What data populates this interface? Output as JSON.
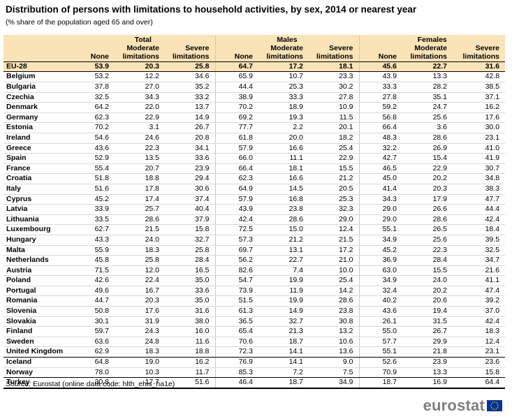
{
  "title": "Distribution of persons with limitations to household activities, by sex, 2014 or nearest year",
  "subtitle": "(% share of the population aged 65 and over)",
  "groups": [
    "Total",
    "Males",
    "Females"
  ],
  "columns": [
    "None",
    "Moderate",
    "limitations",
    "Severe",
    "limitations"
  ],
  "source_label": "Source:",
  "source_text": " Eurostat (online data code: hlth_ehis_ha1e)",
  "logo_text": "eurostat",
  "logo_icon": "eu-flag-icon",
  "colors": {
    "header_bg": "#fbe3b8",
    "flag_blue": "#003399",
    "flag_star": "#ffcc00",
    "logo_gray": "#7f7f7f"
  },
  "rows": [
    {
      "country": "EU-28",
      "v": [
        "53.9",
        "20.3",
        "25.8",
        "64.7",
        "17.2",
        "18.1",
        "45.6",
        "22.7",
        "31.6"
      ]
    },
    {
      "country": "Belgium",
      "v": [
        "53.2",
        "12.2",
        "34.6",
        "65.9",
        "10.7",
        "23.3",
        "43.9",
        "13.3",
        "42.8"
      ]
    },
    {
      "country": "Bulgaria",
      "v": [
        "37.8",
        "27.0",
        "35.2",
        "44.4",
        "25.3",
        "30.2",
        "33.3",
        "28.2",
        "38.5"
      ]
    },
    {
      "country": "Czechia",
      "v": [
        "32.5",
        "34.3",
        "33.2",
        "38.9",
        "33.3",
        "27.8",
        "27.8",
        "35.1",
        "37.1"
      ]
    },
    {
      "country": "Denmark",
      "v": [
        "64.2",
        "22.0",
        "13.7",
        "70.2",
        "18.9",
        "10.9",
        "59.2",
        "24.7",
        "16.2"
      ]
    },
    {
      "country": "Germany",
      "v": [
        "62.3",
        "22.9",
        "14.9",
        "69.2",
        "19.3",
        "11.5",
        "56.8",
        "25.6",
        "17.6"
      ]
    },
    {
      "country": "Estonia",
      "v": [
        "70.2",
        "3.1",
        "26.7",
        "77.7",
        "2.2",
        "20.1",
        "66.4",
        "3.6",
        "30.0"
      ]
    },
    {
      "country": "Ireland",
      "v": [
        "54.6",
        "24.6",
        "20.8",
        "61.8",
        "20.0",
        "18.2",
        "48.3",
        "28.6",
        "23.1"
      ]
    },
    {
      "country": "Greece",
      "v": [
        "43.6",
        "22.3",
        "34.1",
        "57.9",
        "16.6",
        "25.4",
        "32.2",
        "26.9",
        "41.0"
      ]
    },
    {
      "country": "Spain",
      "v": [
        "52.9",
        "13.5",
        "33.6",
        "66.0",
        "11.1",
        "22.9",
        "42.7",
        "15.4",
        "41.9"
      ]
    },
    {
      "country": "France",
      "v": [
        "55.4",
        "20.7",
        "23.9",
        "66.4",
        "18.1",
        "15.5",
        "46.5",
        "22.9",
        "30.7"
      ]
    },
    {
      "country": "Croatia",
      "v": [
        "51.8",
        "18.8",
        "29.4",
        "62.3",
        "16.6",
        "21.2",
        "45.0",
        "20.2",
        "34.8"
      ]
    },
    {
      "country": "Italy",
      "v": [
        "51.6",
        "17.8",
        "30.6",
        "64.9",
        "14.5",
        "20.5",
        "41.4",
        "20.3",
        "38.3"
      ]
    },
    {
      "country": "Cyprus",
      "v": [
        "45.2",
        "17.4",
        "37.4",
        "57.9",
        "16.8",
        "25.3",
        "34.3",
        "17.9",
        "47.7"
      ]
    },
    {
      "country": "Latvia",
      "v": [
        "33.9",
        "25.7",
        "40.4",
        "43.9",
        "23.8",
        "32.3",
        "29.0",
        "26.6",
        "44.4"
      ]
    },
    {
      "country": "Lithuania",
      "v": [
        "33.5",
        "28.6",
        "37.9",
        "42.4",
        "28.6",
        "29.0",
        "29.0",
        "28.6",
        "42.4"
      ]
    },
    {
      "country": "Luxembourg",
      "v": [
        "62.7",
        "21.5",
        "15.8",
        "72.5",
        "15.0",
        "12.4",
        "55.1",
        "26.5",
        "18.4"
      ]
    },
    {
      "country": "Hungary",
      "v": [
        "43.3",
        "24.0",
        "32.7",
        "57.3",
        "21.2",
        "21.5",
        "34.9",
        "25.6",
        "39.5"
      ]
    },
    {
      "country": "Malta",
      "v": [
        "55.9",
        "18.3",
        "25.8",
        "69.7",
        "13.1",
        "17.2",
        "45.2",
        "22.3",
        "32.5"
      ]
    },
    {
      "country": "Netherlands",
      "v": [
        "45.8",
        "25.8",
        "28.4",
        "56.2",
        "22.7",
        "21.0",
        "36.9",
        "28.4",
        "34.7"
      ]
    },
    {
      "country": "Austria",
      "v": [
        "71.5",
        "12.0",
        "16.5",
        "82.6",
        "7.4",
        "10.0",
        "63.0",
        "15.5",
        "21.6"
      ]
    },
    {
      "country": "Poland",
      "v": [
        "42.6",
        "22.4",
        "35.0",
        "54.7",
        "19.9",
        "25.4",
        "34.9",
        "24.0",
        "41.1"
      ]
    },
    {
      "country": "Portugal",
      "v": [
        "49.6",
        "16.7",
        "33.6",
        "73.9",
        "11.9",
        "14.2",
        "32.4",
        "20.2",
        "47.4"
      ]
    },
    {
      "country": "Romania",
      "v": [
        "44.7",
        "20.3",
        "35.0",
        "51.5",
        "19.9",
        "28.6",
        "40.2",
        "20.6",
        "39.2"
      ]
    },
    {
      "country": "Slovenia",
      "v": [
        "50.8",
        "17.6",
        "31.6",
        "61.3",
        "14.9",
        "23.8",
        "43.6",
        "19.4",
        "37.0"
      ]
    },
    {
      "country": "Slovakia",
      "v": [
        "30.1",
        "31.9",
        "38.0",
        "36.5",
        "32.7",
        "30.8",
        "26.1",
        "31.5",
        "42.4"
      ]
    },
    {
      "country": "Finland",
      "v": [
        "59.7",
        "24.3",
        "16.0",
        "65.4",
        "21.3",
        "13.2",
        "55.0",
        "26.7",
        "18.3"
      ]
    },
    {
      "country": "Sweden",
      "v": [
        "63.6",
        "24.8",
        "11.6",
        "70.6",
        "18.7",
        "10.6",
        "57.7",
        "29.9",
        "12.4"
      ]
    },
    {
      "country": "United Kingdom",
      "v": [
        "62.9",
        "18.3",
        "18.8",
        "72.3",
        "14.1",
        "13.6",
        "55.1",
        "21.8",
        "23.1"
      ]
    },
    {
      "country": "Iceland",
      "v": [
        "64.8",
        "19.0",
        "16.2",
        "76.9",
        "14.1",
        "9.0",
        "52.6",
        "23.9",
        "23.6"
      ]
    },
    {
      "country": "Norway",
      "v": [
        "78.0",
        "10.3",
        "11.7",
        "85.3",
        "7.2",
        "7.5",
        "70.9",
        "13.3",
        "15.8"
      ]
    },
    {
      "country": "Turkey",
      "v": [
        "30.8",
        "17.7",
        "51.6",
        "46.4",
        "18.7",
        "34.9",
        "18.7",
        "16.9",
        "64.4"
      ]
    }
  ]
}
